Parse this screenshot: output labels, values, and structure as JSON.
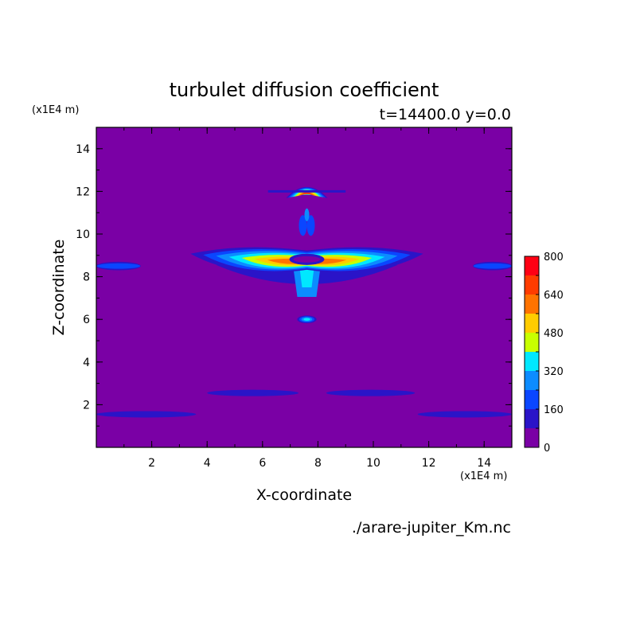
{
  "chart_data": {
    "type": "heatmap",
    "title": "turbulet diffusion coefficient",
    "subtitle": "t=14400.0 y=0.0",
    "xlabel": "X-coordinate",
    "ylabel": "Z-coordinate",
    "x_unit": "(x1E4 m)",
    "y_unit": "(x1E4 m)",
    "xlim": [
      0,
      15
    ],
    "ylim": [
      0,
      15
    ],
    "x_ticks": [
      "2",
      "4",
      "6",
      "8",
      "10",
      "12",
      "14"
    ],
    "y_ticks": [
      "2",
      "4",
      "6",
      "8",
      "10",
      "12",
      "14"
    ],
    "x_tick_values": [
      2,
      4,
      6,
      8,
      10,
      12,
      14
    ],
    "y_tick_values": [
      2,
      4,
      6,
      8,
      10,
      12,
      14
    ],
    "colorbar": {
      "levels": [
        0,
        80,
        160,
        240,
        320,
        400,
        480,
        560,
        640,
        720,
        800
      ],
      "labels": [
        "0",
        "160",
        "320",
        "480",
        "640",
        "800"
      ],
      "label_values": [
        0,
        160,
        320,
        480,
        640,
        800
      ],
      "colors": [
        "#7a00a5",
        "#2a14c8",
        "#0a46ff",
        "#0c8cff",
        "#00e8ff",
        "#c8ff00",
        "#ffcc00",
        "#ff7300",
        "#ff3c00",
        "#ff0014",
        "#ffb0b0"
      ]
    },
    "features": [
      {
        "kind": "cap",
        "cx": 7.6,
        "cz": 11.85,
        "rx": 0.75,
        "rz": 0.55,
        "level": 8
      },
      {
        "kind": "eye",
        "cx": 7.6,
        "cz": 6.0,
        "rx": 0.35,
        "rz": 0.18,
        "level": 4
      },
      {
        "kind": "main",
        "cx": 7.6,
        "cz": 8.7,
        "rx": 4.2,
        "rz": 0.75,
        "level": 7
      },
      {
        "kind": "layer",
        "x0": 0,
        "x1": 1.6,
        "cz": 8.5,
        "thick": 0.2,
        "level": 2
      },
      {
        "kind": "layer",
        "x0": 13.6,
        "x1": 15,
        "cz": 8.5,
        "thick": 0.2,
        "level": 2
      },
      {
        "kind": "layer",
        "x0": 4.0,
        "x1": 7.3,
        "cz": 2.55,
        "thick": 0.15,
        "level": 1
      },
      {
        "kind": "layer",
        "x0": 8.3,
        "x1": 11.5,
        "cz": 2.55,
        "thick": 0.15,
        "level": 1
      },
      {
        "kind": "layer",
        "x0": 0,
        "x1": 3.6,
        "cz": 1.55,
        "thick": 0.15,
        "level": 1
      },
      {
        "kind": "layer",
        "x0": 11.6,
        "x1": 15,
        "cz": 1.55,
        "thick": 0.15,
        "level": 1
      }
    ]
  },
  "footer": {
    "filename": "./arare-jupiter_Km.nc"
  }
}
